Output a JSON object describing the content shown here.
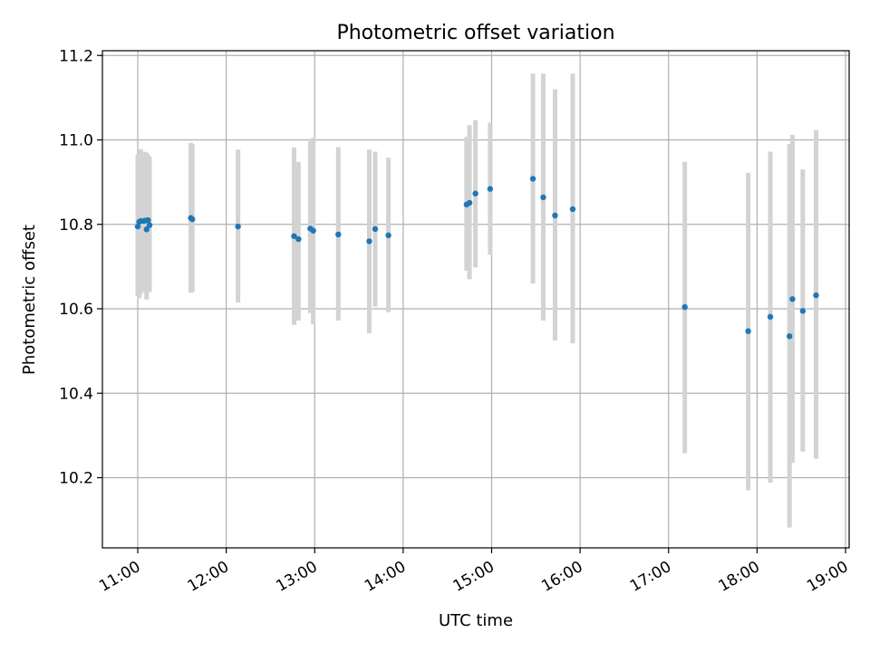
{
  "chart_data": {
    "type": "scatter",
    "title": "Photometric offset variation",
    "xlabel": "UTC time",
    "ylabel": "Photometric offset",
    "grid": true,
    "x_ticks": [
      "11:00",
      "12:00",
      "13:00",
      "14:00",
      "15:00",
      "16:00",
      "17:00",
      "18:00",
      "19:00"
    ],
    "y_ticks": [
      "10.2",
      "10.4",
      "10.6",
      "10.8",
      "11.0",
      "11.2"
    ],
    "colors": {
      "point": "#1f77b4",
      "errorbar": "#d3d3d3",
      "grid": "#b0b0b0"
    },
    "points": [
      {
        "x": "11:00",
        "y": 10.795,
        "ylow": 10.63,
        "yhigh": 10.965
      },
      {
        "x": "11:01",
        "y": 10.806,
        "ylow": 10.625,
        "yhigh": 10.965
      },
      {
        "x": "11:02",
        "y": 10.808,
        "ylow": 10.635,
        "yhigh": 10.978
      },
      {
        "x": "11:04",
        "y": 10.808,
        "ylow": 10.64,
        "yhigh": 10.972
      },
      {
        "x": "11:05",
        "y": 10.809,
        "ylow": 10.65,
        "yhigh": 10.965
      },
      {
        "x": "11:06",
        "y": 10.788,
        "ylow": 10.622,
        "yhigh": 10.97
      },
      {
        "x": "11:07",
        "y": 10.81,
        "ylow": 10.65,
        "yhigh": 10.965
      },
      {
        "x": "11:08",
        "y": 10.798,
        "ylow": 10.64,
        "yhigh": 10.96
      },
      {
        "x": "11:36",
        "y": 10.815,
        "ylow": 10.638,
        "yhigh": 10.993
      },
      {
        "x": "11:37",
        "y": 10.812,
        "ylow": 10.64,
        "yhigh": 10.99
      },
      {
        "x": "12:08",
        "y": 10.795,
        "ylow": 10.615,
        "yhigh": 10.977
      },
      {
        "x": "12:46",
        "y": 10.772,
        "ylow": 10.562,
        "yhigh": 10.982
      },
      {
        "x": "12:49",
        "y": 10.765,
        "ylow": 10.572,
        "yhigh": 10.948
      },
      {
        "x": "12:57",
        "y": 10.79,
        "ylow": 10.59,
        "yhigh": 10.997
      },
      {
        "x": "12:59",
        "y": 10.785,
        "ylow": 10.563,
        "yhigh": 11.005
      },
      {
        "x": "13:16",
        "y": 10.776,
        "ylow": 10.572,
        "yhigh": 10.983
      },
      {
        "x": "13:37",
        "y": 10.76,
        "ylow": 10.542,
        "yhigh": 10.977
      },
      {
        "x": "13:41",
        "y": 10.789,
        "ylow": 10.605,
        "yhigh": 10.972
      },
      {
        "x": "13:50",
        "y": 10.774,
        "ylow": 10.592,
        "yhigh": 10.958
      },
      {
        "x": "14:43",
        "y": 10.847,
        "ylow": 10.69,
        "yhigh": 11.007
      },
      {
        "x": "14:45",
        "y": 10.851,
        "ylow": 10.67,
        "yhigh": 11.035
      },
      {
        "x": "14:49",
        "y": 10.873,
        "ylow": 10.698,
        "yhigh": 11.047
      },
      {
        "x": "14:59",
        "y": 10.884,
        "ylow": 10.728,
        "yhigh": 11.041
      },
      {
        "x": "15:28",
        "y": 10.908,
        "ylow": 10.66,
        "yhigh": 11.157
      },
      {
        "x": "15:35",
        "y": 10.864,
        "ylow": 10.572,
        "yhigh": 11.157
      },
      {
        "x": "15:43",
        "y": 10.821,
        "ylow": 10.525,
        "yhigh": 11.12
      },
      {
        "x": "15:55",
        "y": 10.836,
        "ylow": 10.518,
        "yhigh": 11.157
      },
      {
        "x": "17:11",
        "y": 10.604,
        "ylow": 10.258,
        "yhigh": 10.948
      },
      {
        "x": "17:54",
        "y": 10.547,
        "ylow": 10.17,
        "yhigh": 10.922
      },
      {
        "x": "18:09",
        "y": 10.581,
        "ylow": 10.188,
        "yhigh": 10.972
      },
      {
        "x": "18:22",
        "y": 10.535,
        "ylow": 10.082,
        "yhigh": 10.99
      },
      {
        "x": "18:24",
        "y": 10.623,
        "ylow": 10.235,
        "yhigh": 11.012
      },
      {
        "x": "18:31",
        "y": 10.595,
        "ylow": 10.262,
        "yhigh": 10.93
      },
      {
        "x": "18:40",
        "y": 10.632,
        "ylow": 10.245,
        "yhigh": 11.023
      }
    ]
  }
}
